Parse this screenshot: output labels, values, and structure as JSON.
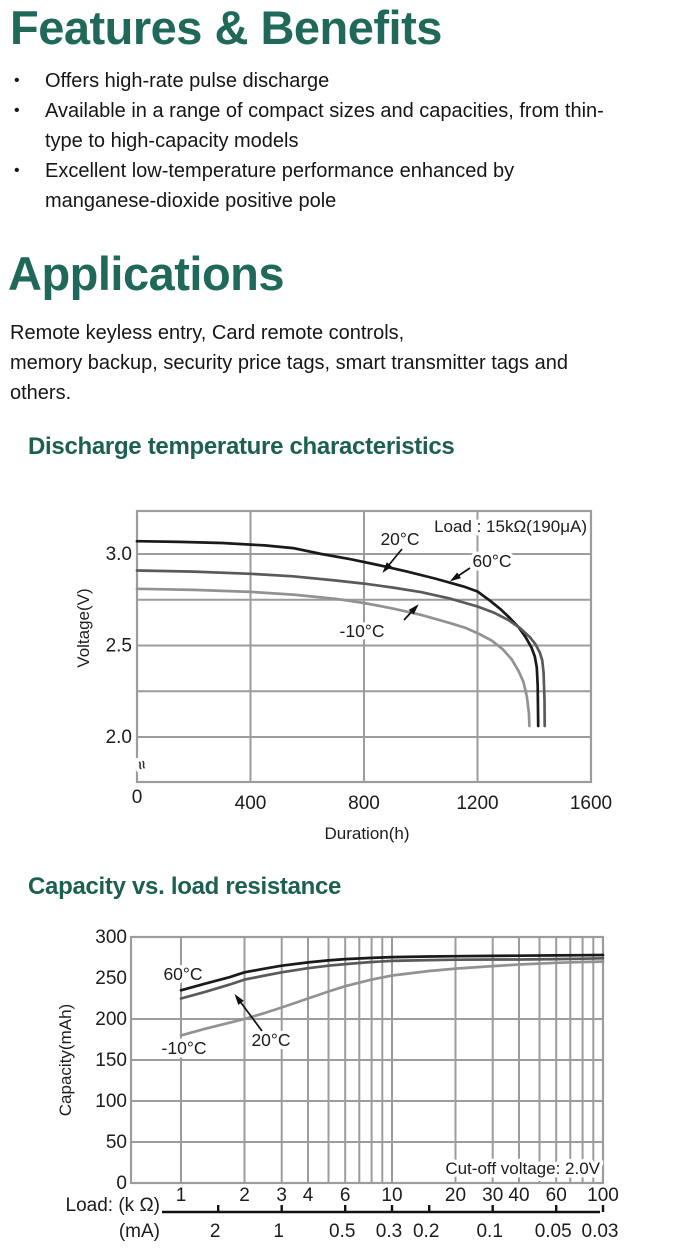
{
  "content": {
    "features_heading": "Features & Benefits",
    "bullet_glyph": "•",
    "bullets": [
      {
        "lines": [
          "Offers high-rate pulse discharge"
        ]
      },
      {
        "lines": [
          "Available in a range of compact sizes and capacities, from thin-",
          "type to high-capacity models"
        ]
      },
      {
        "lines": [
          "Excellent low-temperature performance enhanced by",
          "manganese-dioxide positive pole"
        ]
      }
    ],
    "applications_heading": "Applications",
    "applications_lines": [
      "Remote keyless entry, Card remote controls,",
      "memory backup, security price tags, smart transmitter tags and",
      "others."
    ],
    "chart1_heading": "Discharge temperature characteristics",
    "chart2_heading": "Capacity vs. load resistance"
  },
  "colors": {
    "heading_teal": "#20695a",
    "subheading_teal": "#1d6052",
    "body_text": "#161616",
    "grid_gray": "#9c9c9c",
    "curve_black": "#1a1a1a",
    "curve_mid_gray": "#5a5a5a",
    "curve_light_gray": "#929292"
  },
  "chart_data": [
    {
      "type": "line",
      "title": "Discharge temperature characteristics",
      "xlabel": "Duration(h)",
      "ylabel": "Voltage(V)",
      "xlim": [
        0,
        1600
      ],
      "ylim": [
        2.0,
        3.23
      ],
      "axis_break": true,
      "axis_break_symbol": "≈",
      "grid": true,
      "x_ticks": [
        {
          "v": 0,
          "label": "0"
        },
        {
          "v": 400,
          "label": "400"
        },
        {
          "v": 800,
          "label": "800"
        },
        {
          "v": 1200,
          "label": "1200"
        },
        {
          "v": 1600,
          "label": "1600"
        }
      ],
      "y_ticks": [
        {
          "v": 3.0,
          "label": "3.0"
        },
        {
          "v": 2.5,
          "label": "2.5"
        },
        {
          "v": 2.0,
          "label": "2.0"
        }
      ],
      "y_gridlines": [
        3.0,
        2.75,
        2.5,
        2.25,
        2.0
      ],
      "x_gridlines": [
        400,
        800,
        1200
      ],
      "series": [
        {
          "name": "60°C",
          "color": "#1a1a1a",
          "points": [
            [
              0,
              3.07
            ],
            [
              150,
              3.066
            ],
            [
              300,
              3.06
            ],
            [
              450,
              3.047
            ],
            [
              550,
              3.032
            ],
            [
              650,
              3.0
            ],
            [
              750,
              2.972
            ],
            [
              850,
              2.94
            ],
            [
              950,
              2.905
            ],
            [
              1050,
              2.866
            ],
            [
              1150,
              2.823
            ],
            [
              1200,
              2.795
            ],
            [
              1244,
              2.745
            ],
            [
              1280,
              2.7
            ],
            [
              1314,
              2.65
            ],
            [
              1345,
              2.6
            ],
            [
              1370,
              2.545
            ],
            [
              1390,
              2.49
            ],
            [
              1402,
              2.44
            ],
            [
              1409,
              2.38
            ],
            [
              1412,
              2.28
            ],
            [
              1414,
              2.06
            ]
          ]
        },
        {
          "name": "20°C",
          "color": "#5a5a5a",
          "points": [
            [
              0,
              2.91
            ],
            [
              200,
              2.904
            ],
            [
              400,
              2.892
            ],
            [
              550,
              2.878
            ],
            [
              700,
              2.855
            ],
            [
              800,
              2.838
            ],
            [
              900,
              2.817
            ],
            [
              1000,
              2.792
            ],
            [
              1100,
              2.758
            ],
            [
              1200,
              2.713
            ],
            [
              1260,
              2.678
            ],
            [
              1310,
              2.638
            ],
            [
              1350,
              2.595
            ],
            [
              1385,
              2.545
            ],
            [
              1405,
              2.505
            ],
            [
              1420,
              2.46
            ],
            [
              1428,
              2.42
            ],
            [
              1433,
              2.35
            ],
            [
              1436,
              2.2
            ],
            [
              1437,
              2.06
            ]
          ]
        },
        {
          "name": "-10°C",
          "color": "#929292",
          "points": [
            [
              0,
              2.81
            ],
            [
              200,
              2.804
            ],
            [
              400,
              2.793
            ],
            [
              550,
              2.778
            ],
            [
              700,
              2.755
            ],
            [
              800,
              2.732
            ],
            [
              900,
              2.703
            ],
            [
              1000,
              2.668
            ],
            [
              1100,
              2.624
            ],
            [
              1160,
              2.595
            ],
            [
              1210,
              2.56
            ],
            [
              1250,
              2.527
            ],
            [
              1290,
              2.478
            ],
            [
              1320,
              2.425
            ],
            [
              1345,
              2.36
            ],
            [
              1362,
              2.3
            ],
            [
              1374,
              2.22
            ],
            [
              1381,
              2.13
            ],
            [
              1383,
              2.06
            ]
          ]
        }
      ],
      "labels": [
        {
          "text": "20°C",
          "x": 400,
          "y": 545,
          "anchor": "middle",
          "arrow": [
            [
              402,
              549
            ],
            [
              384,
              571
            ]
          ]
        },
        {
          "text": "60°C",
          "x": 492,
          "y": 567,
          "anchor": "middle",
          "arrow": [
            [
              470,
              568
            ],
            [
              452,
              580
            ]
          ]
        },
        {
          "text": "-10°C",
          "x": 362,
          "y": 637,
          "anchor": "middle",
          "arrow": [
            [
              404,
              620
            ],
            [
              417,
              606
            ]
          ]
        },
        {
          "text": "Load : 15kΩ(190μA)",
          "x": 587,
          "y": 532,
          "anchor": "end",
          "cls": "note"
        }
      ]
    },
    {
      "type": "line",
      "title": "Capacity vs. load resistance",
      "xlabel": "Load: (k Ω)",
      "x2label": "(mA)",
      "ylabel": "Capacity(mAh)",
      "x_scale": "log",
      "xlim": [
        0.58,
        100
      ],
      "ylim": [
        0,
        300
      ],
      "grid": true,
      "x_ticks": [
        {
          "v": 1,
          "label": "1"
        },
        {
          "v": 2,
          "label": "2"
        },
        {
          "v": 3,
          "label": "3"
        },
        {
          "v": 4,
          "label": "4"
        },
        {
          "v": 6,
          "label": "6"
        },
        {
          "v": 10,
          "label": "10"
        },
        {
          "v": 20,
          "label": "20"
        },
        {
          "v": 30,
          "label": "30"
        },
        {
          "v": 40,
          "label": "40"
        },
        {
          "v": 60,
          "label": "60"
        },
        {
          "v": 100,
          "label": "100"
        }
      ],
      "y_ticks": [
        {
          "v": 300,
          "label": "300"
        },
        {
          "v": 250,
          "label": "250"
        },
        {
          "v": 200,
          "label": "200"
        },
        {
          "v": 150,
          "label": "150"
        },
        {
          "v": 100,
          "label": "100"
        },
        {
          "v": 50,
          "label": "50"
        },
        {
          "v": 0,
          "label": "0"
        }
      ],
      "y_gridlines": [
        200,
        150,
        100,
        50
      ],
      "x_gridlines": [
        1,
        2,
        3,
        4,
        5,
        6,
        7,
        8,
        9,
        10,
        20,
        30,
        40,
        50,
        60,
        70,
        80,
        90
      ],
      "ma_ticks": [
        {
          "label": "2",
          "kohm": 1.5
        },
        {
          "label": "1",
          "kohm": 3
        },
        {
          "label": "0.5",
          "kohm": 6
        },
        {
          "label": "0.3",
          "kohm": 10
        },
        {
          "label": "0.2",
          "kohm": 15
        },
        {
          "label": "0.1",
          "kohm": 30
        },
        {
          "label": "0.05",
          "kohm": 60
        },
        {
          "label": "0.03",
          "kohm": 100
        }
      ],
      "series": [
        {
          "name": "60°C",
          "color": "#1a1a1a",
          "points": [
            [
              1,
              235
            ],
            [
              1.3,
              243
            ],
            [
              1.7,
              251
            ],
            [
              2,
              257
            ],
            [
              2.5,
              261.5
            ],
            [
              3,
              265
            ],
            [
              4,
              269
            ],
            [
              5,
              271.5
            ],
            [
              6,
              273
            ],
            [
              8,
              274.5
            ],
            [
              10,
              275.5
            ],
            [
              15,
              276.2
            ],
            [
              20,
              276.6
            ],
            [
              30,
              277
            ],
            [
              40,
              277.2
            ],
            [
              60,
              277.6
            ],
            [
              80,
              277.8
            ],
            [
              100,
              278
            ]
          ]
        },
        {
          "name": "20°C",
          "color": "#5a5a5a",
          "points": [
            [
              1,
              225
            ],
            [
              1.3,
              233
            ],
            [
              1.7,
              242
            ],
            [
              2,
              248
            ],
            [
              2.5,
              253
            ],
            [
              3,
              257
            ],
            [
              4,
              262
            ],
            [
              5,
              265
            ],
            [
              6,
              267
            ],
            [
              8,
              269.5
            ],
            [
              10,
              270.8
            ],
            [
              15,
              271.8
            ],
            [
              20,
              272.3
            ],
            [
              30,
              272.5
            ],
            [
              40,
              272.6
            ],
            [
              60,
              273
            ],
            [
              80,
              273.5
            ],
            [
              100,
              274
            ]
          ]
        },
        {
          "name": "-10°C",
          "color": "#929292",
          "points": [
            [
              1,
              180
            ],
            [
              1.3,
              188
            ],
            [
              1.7,
              195.5
            ],
            [
              2,
              200
            ],
            [
              2.5,
              207.5
            ],
            [
              3,
              214
            ],
            [
              4,
              225
            ],
            [
              5,
              233.5
            ],
            [
              6,
              240
            ],
            [
              8,
              248
            ],
            [
              10,
              253
            ],
            [
              15,
              258.5
            ],
            [
              20,
              261.5
            ],
            [
              30,
              264.5
            ],
            [
              40,
              266.5
            ],
            [
              60,
              268.5
            ],
            [
              80,
              269.5
            ],
            [
              100,
              270
            ]
          ]
        }
      ],
      "labels": [
        {
          "text": "60°C",
          "x": 183,
          "y": 980,
          "anchor": "middle"
        },
        {
          "text": "-10°C",
          "x": 184,
          "y": 1054,
          "anchor": "middle"
        },
        {
          "text": "20°C",
          "x": 271,
          "y": 1046,
          "anchor": "middle",
          "arrow": [
            [
              262,
              1031
            ],
            [
              236,
              996
            ]
          ]
        },
        {
          "text": "Cut-off voltage: 2.0V",
          "x": 600,
          "y": 1174,
          "anchor": "end",
          "cls": "note"
        }
      ]
    }
  ]
}
